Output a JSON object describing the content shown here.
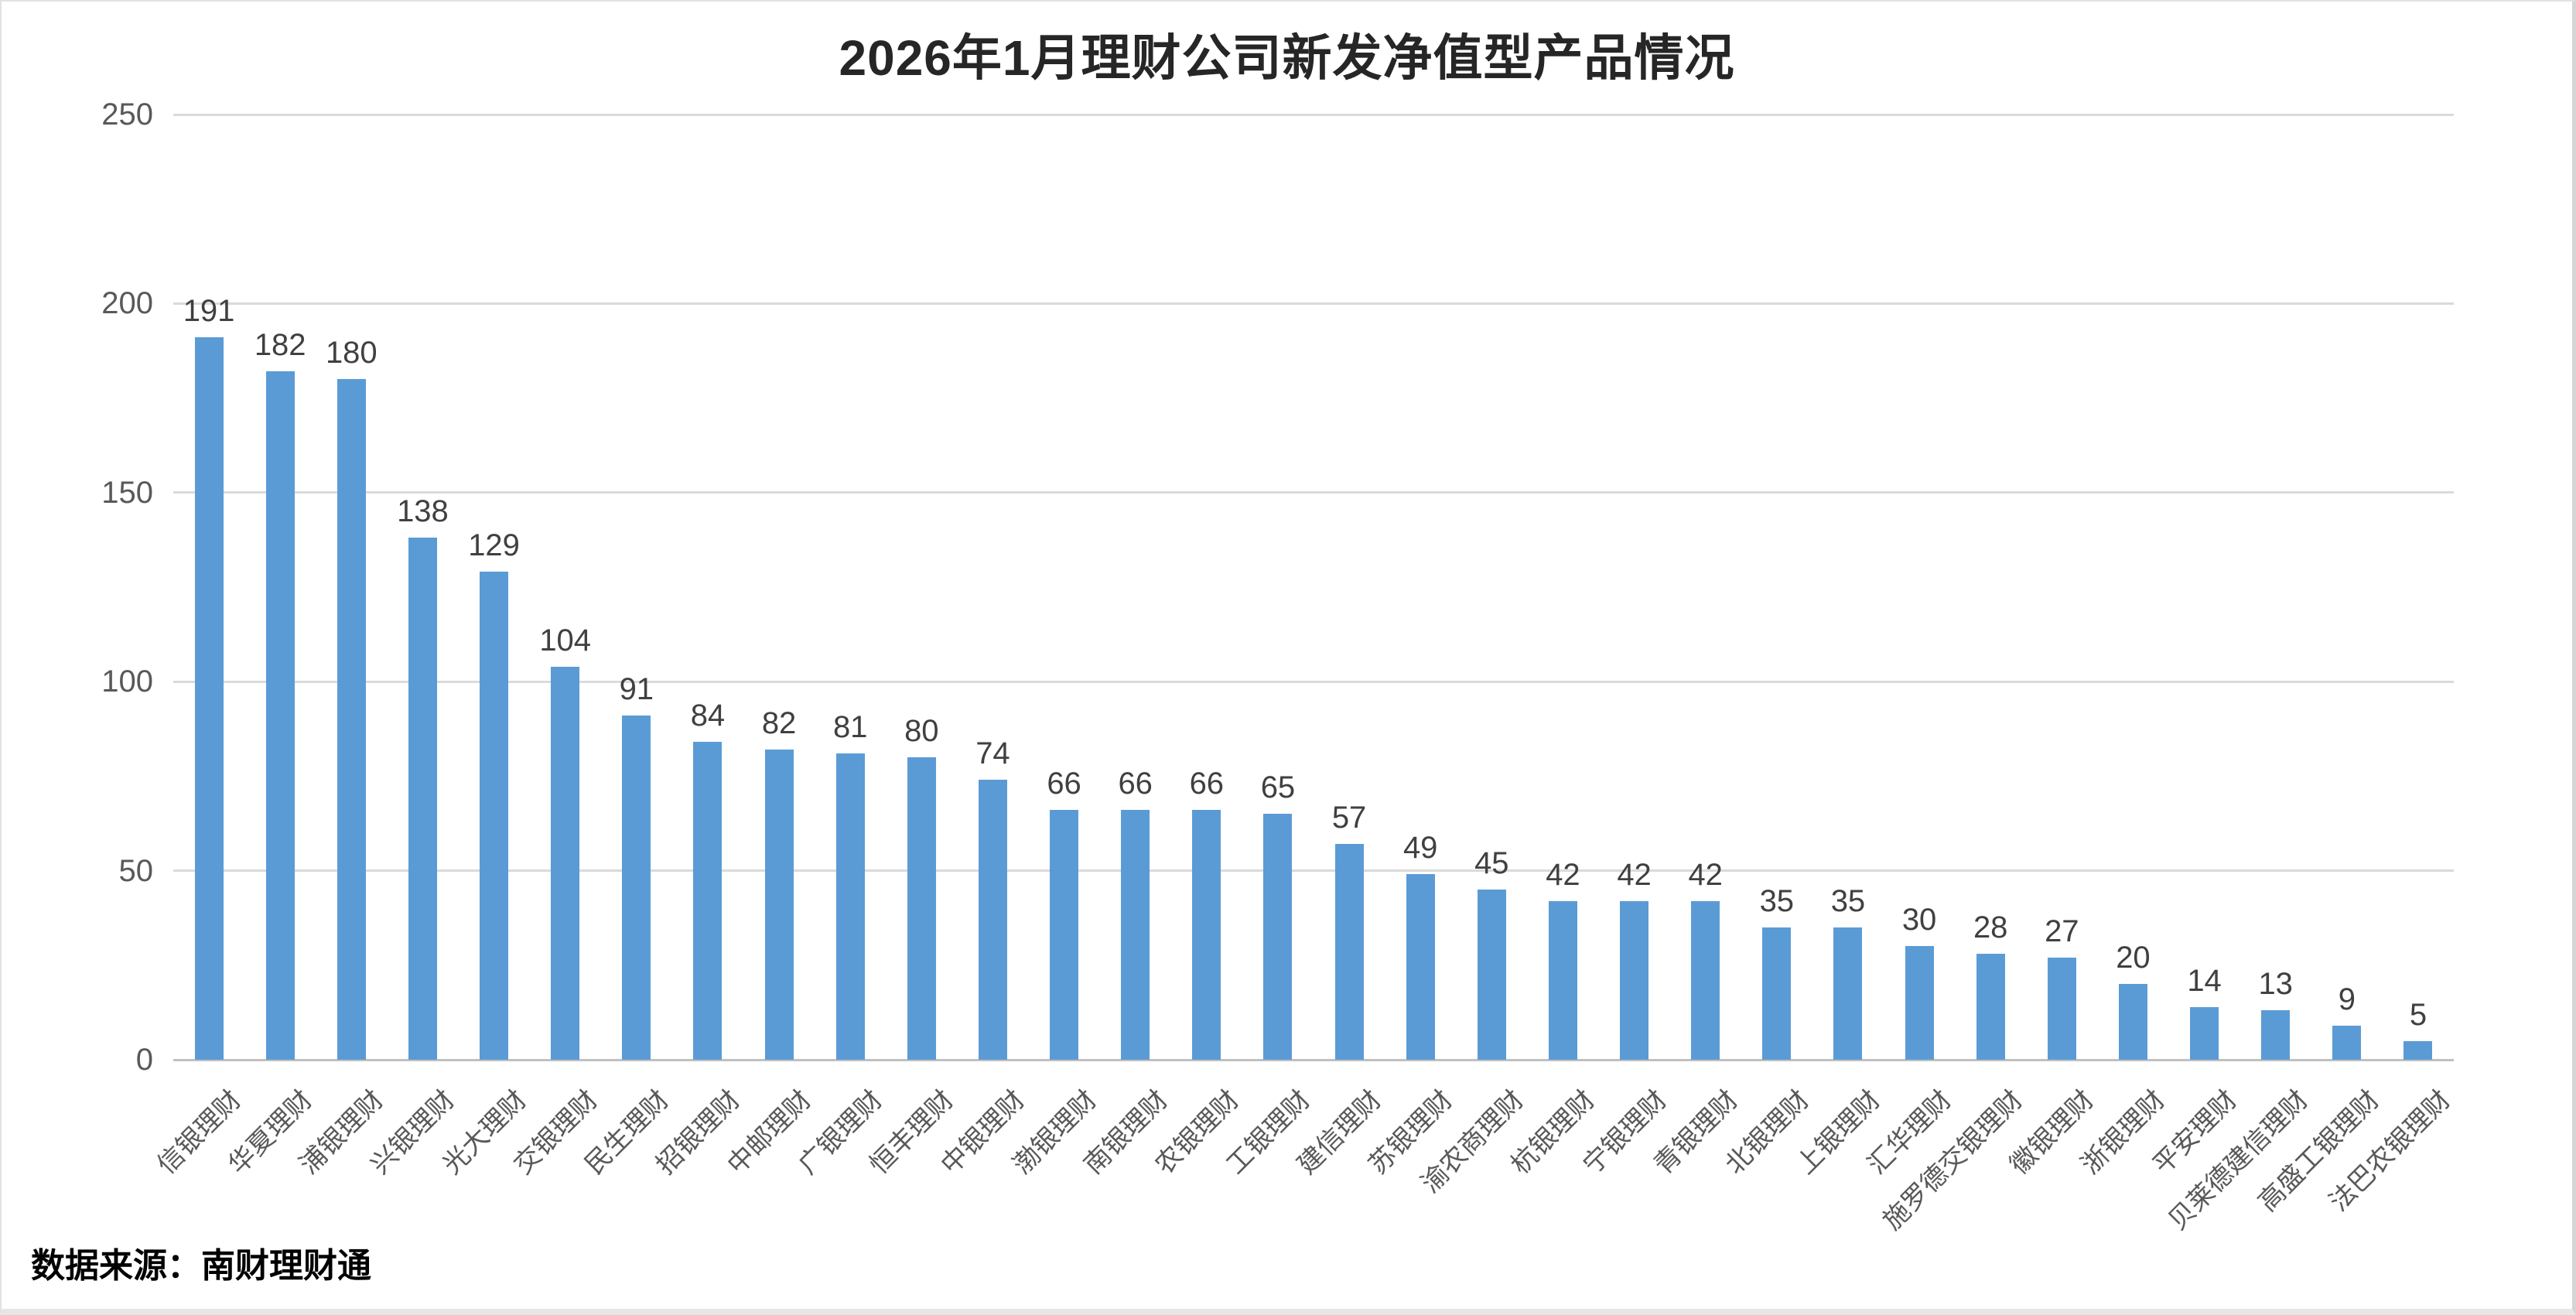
{
  "chart_data": {
    "type": "bar",
    "title": "2026年1月理财公司新发净值型产品情况",
    "categories": [
      "信银理财",
      "华夏理财",
      "浦银理财",
      "兴银理财",
      "光大理财",
      "交银理财",
      "民生理财",
      "招银理财",
      "中邮理财",
      "广银理财",
      "恒丰理财",
      "中银理财",
      "渤银理财",
      "南银理财",
      "农银理财",
      "工银理财",
      "建信理财",
      "苏银理财",
      "渝农商理财",
      "杭银理财",
      "宁银理财",
      "青银理财",
      "北银理财",
      "上银理财",
      "汇华理财",
      "施罗德交银理财",
      "徽银理财",
      "浙银理财",
      "平安理财",
      "贝莱德建信理财",
      "高盛工银理财",
      "法巴农银理财"
    ],
    "values": [
      191,
      182,
      180,
      138,
      129,
      104,
      91,
      84,
      82,
      81,
      80,
      74,
      66,
      66,
      66,
      65,
      57,
      49,
      45,
      42,
      42,
      42,
      35,
      35,
      30,
      28,
      27,
      20,
      14,
      13,
      9,
      5
    ],
    "xlabel": "",
    "ylabel": "",
    "ylim": [
      0,
      250
    ],
    "yticks": [
      0,
      50,
      100,
      150,
      200,
      250
    ],
    "grid": "horizontal",
    "legend_position": "none",
    "value_labels_shown": true
  },
  "source_note": "数据来源：南财理财通",
  "colors": {
    "bar": "#5B9BD5",
    "gridline": "#dadada",
    "baseline": "#c0c0c0",
    "axis_text": "#595959",
    "value_text": "#404040",
    "title_text": "#262626"
  }
}
